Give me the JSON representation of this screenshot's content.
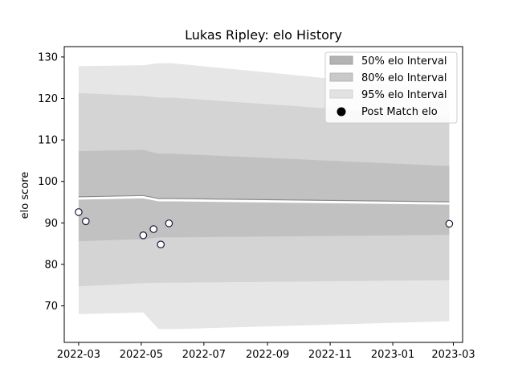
{
  "chart_data": {
    "type": "area",
    "title": "Lukas Ripley: elo History",
    "xlabel": "",
    "ylabel": "elo score",
    "xlim": [
      "2022-02-15",
      "2023-03-10"
    ],
    "ylim": [
      61.2,
      132.5
    ],
    "x_ticks": [
      "2022-03",
      "2022-05",
      "2022-07",
      "2022-09",
      "2022-11",
      "2023-01",
      "2023-03"
    ],
    "y_ticks": [
      70,
      80,
      90,
      100,
      110,
      120,
      130
    ],
    "grid": false,
    "legend_position": "top-right",
    "band_x": [
      "2022-03-01",
      "2022-05-03",
      "2022-05-18",
      "2022-05-31",
      "2023-02-25"
    ],
    "mean": [
      96.0,
      96.3,
      95.6,
      95.6,
      94.8
    ],
    "bands": [
      {
        "name": "95% elo Interval",
        "color": "#e2e2e2",
        "lower": [
          68.0,
          68.4,
          64.4,
          64.4,
          66.3
        ],
        "upper": [
          127.8,
          128.0,
          128.5,
          128.5,
          122.0
        ]
      },
      {
        "name": "80% elo Interval",
        "color": "#d0d0d0",
        "lower": [
          74.7,
          75.5,
          75.6,
          75.6,
          76.2
        ],
        "upper": [
          121.3,
          120.6,
          120.2,
          120.2,
          115.6
        ]
      },
      {
        "name": "50% elo Interval",
        "color": "#bdbdbd",
        "lower": [
          85.6,
          86.1,
          86.5,
          86.5,
          87.1
        ],
        "upper": [
          107.3,
          107.6,
          106.7,
          106.7,
          103.7
        ]
      }
    ],
    "points_name": "Post Match elo",
    "points": [
      {
        "x": "2022-03-01",
        "y": 92.6
      },
      {
        "x": "2022-03-08",
        "y": 90.4
      },
      {
        "x": "2022-05-03",
        "y": 87.0
      },
      {
        "x": "2022-05-13",
        "y": 88.5
      },
      {
        "x": "2022-05-20",
        "y": 84.8
      },
      {
        "x": "2022-05-28",
        "y": 89.9
      },
      {
        "x": "2023-02-25",
        "y": 89.8
      }
    ],
    "legend": [
      "50% elo Interval",
      "80% elo Interval",
      "95% elo Interval",
      "Post Match elo"
    ]
  }
}
